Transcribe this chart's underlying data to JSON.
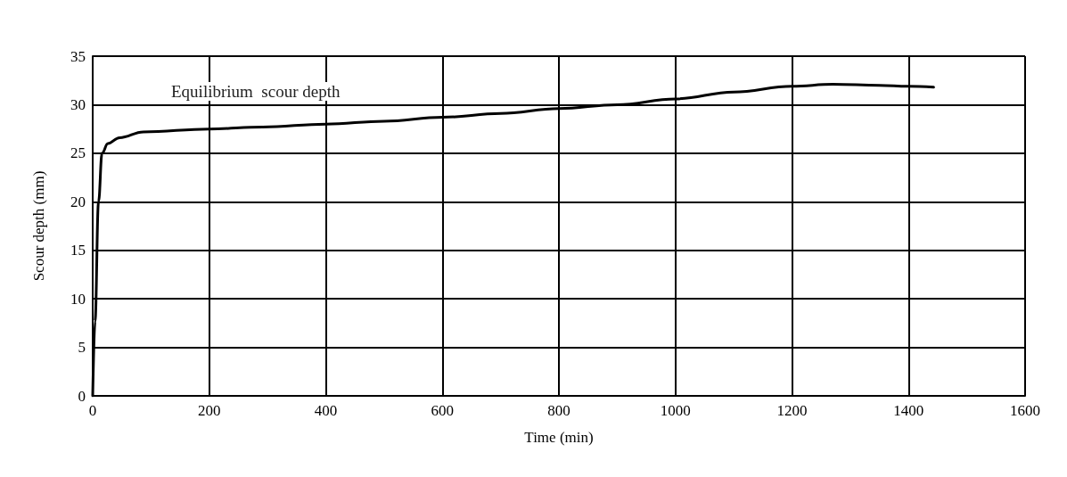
{
  "chart_data": {
    "type": "line",
    "xlabel": "Time (min)",
    "ylabel": "Scour depth (mm)",
    "xlim": [
      0,
      1600
    ],
    "xticks": [
      0,
      200,
      400,
      600,
      800,
      1000,
      1200,
      1400,
      1600
    ],
    "ylim": [
      0,
      35
    ],
    "yticks": [
      0,
      5,
      10,
      15,
      20,
      25,
      30,
      35
    ],
    "grid": true,
    "marker": "none",
    "line_style": "solid",
    "series": [
      {
        "color": "#000000",
        "x": [
          0,
          4,
          10,
          16,
          26,
          46,
          87,
          200,
          292,
          400,
          500,
          600,
          700,
          800,
          900,
          1000,
          1100,
          1200,
          1270,
          1350,
          1400,
          1443
        ],
        "values": [
          0,
          7.7,
          20,
          25,
          26,
          26.6,
          27.2,
          27.5,
          27.7,
          28,
          28.3,
          28.7,
          29.1,
          29.6,
          30,
          30.6,
          31.3,
          31.9,
          32.1,
          32,
          31.9,
          31.8
        ]
      }
    ],
    "annotations": [
      "Equilibrium  scour depth"
    ]
  }
}
